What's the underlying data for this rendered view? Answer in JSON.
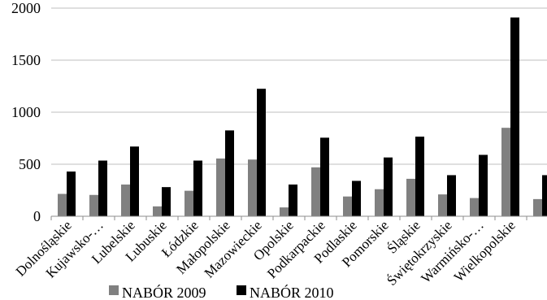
{
  "chart_data": {
    "type": "bar",
    "categories": [
      "Dolnośląskie",
      "Kujawsko-…",
      "Lubelskie",
      "Lubuskie",
      "Łódzkie",
      "Małopolskie",
      "Mazowieckie",
      "Opolskie",
      "Podkarpackie",
      "Podlaskie",
      "Pomorskie",
      "Śląskie",
      "Świętokrzyskie",
      "Warmińsko-…",
      "Wielkopolskie",
      ""
    ],
    "series": [
      {
        "name": "NABÓR 2009",
        "color": "#808080",
        "values": [
          215,
          205,
          305,
          95,
          245,
          555,
          545,
          85,
          470,
          190,
          260,
          360,
          210,
          175,
          850,
          165
        ]
      },
      {
        "name": "NABÓR 2010",
        "color": "#000000",
        "values": [
          430,
          535,
          670,
          280,
          535,
          825,
          1225,
          305,
          755,
          340,
          565,
          765,
          395,
          590,
          1910,
          395
        ]
      }
    ],
    "y_ticks": [
      "0",
      "500",
      "1000",
      "1500",
      "2000"
    ],
    "ylim": [
      0,
      2000
    ],
    "grid": true,
    "legend": "bottom"
  }
}
